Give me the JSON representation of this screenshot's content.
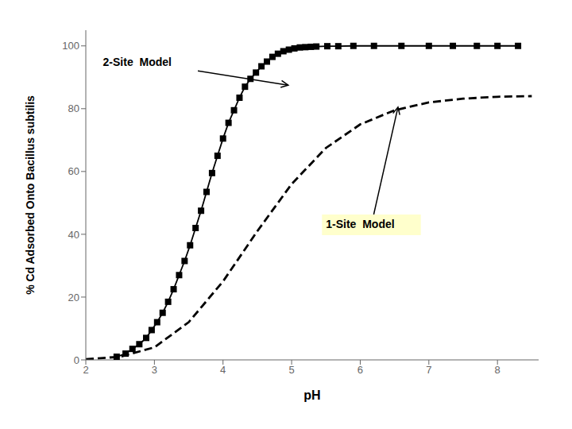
{
  "chart_data": {
    "type": "line",
    "xlabel": "pH",
    "ylabel": "% Cd Adsorbed Onto Bacillus subtilis",
    "xlim": [
      2,
      8.6
    ],
    "ylim": [
      0,
      105
    ],
    "xticks": [
      2,
      3,
      4,
      5,
      6,
      7,
      8
    ],
    "yticks": [
      0,
      20,
      40,
      60,
      80,
      100
    ],
    "grid": false,
    "series": [
      {
        "type": "line",
        "color": "black",
        "line_style": "solid",
        "marker": "square",
        "x": [
          2.45,
          2.58,
          2.68,
          2.78,
          2.88,
          2.96,
          3.04,
          3.12,
          3.2,
          3.28,
          3.36,
          3.44,
          3.52,
          3.6,
          3.68,
          3.76,
          3.84,
          3.92,
          4.0,
          4.08,
          4.16,
          4.24,
          4.32,
          4.4,
          4.48,
          4.56,
          4.64,
          4.72,
          4.8,
          4.88,
          4.96,
          5.04,
          5.12,
          5.2,
          5.28,
          5.36,
          5.52,
          5.68,
          5.9,
          6.2,
          6.6,
          7.0,
          7.35,
          7.7,
          8.0,
          8.3
        ],
        "values": [
          1.0,
          2.0,
          3.5,
          5.0,
          7.0,
          9.5,
          12.0,
          15.0,
          18.5,
          22.5,
          27.0,
          31.5,
          36.5,
          42.0,
          47.5,
          53.5,
          59.5,
          65.0,
          70.5,
          75.5,
          79.5,
          83.5,
          87.0,
          89.5,
          91.5,
          93.5,
          95.0,
          96.5,
          97.5,
          98.3,
          98.8,
          99.2,
          99.5,
          99.6,
          99.7,
          99.8,
          99.9,
          99.9,
          100.0,
          100.0,
          100.0,
          100.0,
          100.0,
          100.0,
          100.0,
          100.0
        ]
      },
      {
        "type": "line",
        "color": "black",
        "line_style": "dashed",
        "marker": "none",
        "x": [
          2.0,
          2.5,
          3.0,
          3.5,
          4.0,
          4.5,
          5.0,
          5.5,
          6.0,
          6.5,
          7.0,
          7.5,
          8.0,
          8.5
        ],
        "values": [
          0.2,
          1.0,
          4.0,
          12.0,
          25.0,
          41.0,
          56.0,
          67.5,
          75.0,
          79.5,
          82.0,
          83.2,
          83.8,
          84.0
        ]
      }
    ],
    "annotations": [
      {
        "text": "2-Site  Model",
        "x": 4.95,
        "y": 87.5,
        "text_x": 2.25,
        "text_y": 93.5
      },
      {
        "text": "1-Site  Model",
        "x": 6.55,
        "y": 80.5,
        "text_x": 5.5,
        "text_y": 42.0
      }
    ]
  }
}
